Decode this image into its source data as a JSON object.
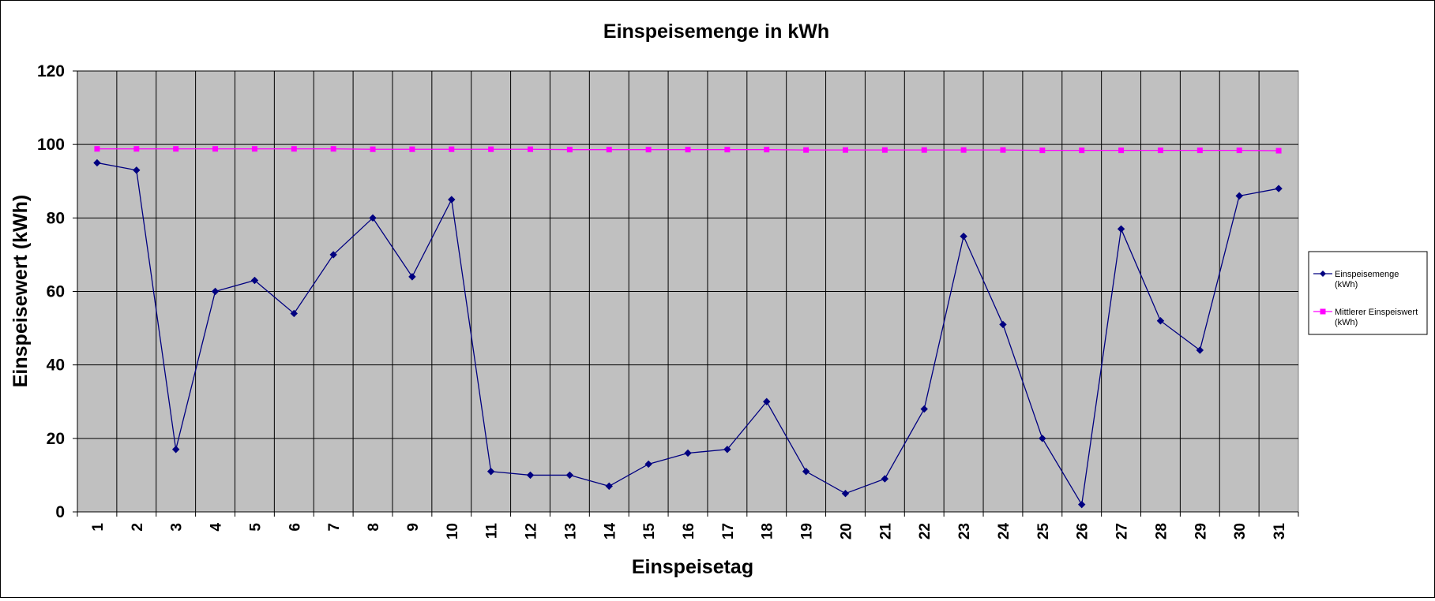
{
  "chart_data": {
    "type": "line",
    "title": "Einspeisemenge in kWh",
    "xlabel": "Einspeisetag",
    "ylabel": "Einspeisewert  (kWh)",
    "ylim": [
      0,
      120
    ],
    "yticks": [
      0,
      20,
      40,
      60,
      80,
      100,
      120
    ],
    "categories": [
      "1",
      "2",
      "3",
      "4",
      "5",
      "6",
      "7",
      "8",
      "9",
      "10",
      "11",
      "12",
      "13",
      "14",
      "15",
      "16",
      "17",
      "18",
      "19",
      "20",
      "21",
      "22",
      "23",
      "24",
      "25",
      "26",
      "27",
      "28",
      "29",
      "30",
      "31"
    ],
    "grid": true,
    "legend_position": "right",
    "series": [
      {
        "name": "Einspeisemenge (kWh)",
        "legend_lines": [
          "Einspeisemenge",
          "(kWh)"
        ],
        "color": "#000080",
        "marker": "diamond",
        "values": [
          95,
          93,
          17,
          60,
          63,
          54,
          70,
          80,
          64,
          85,
          11,
          10,
          10,
          7,
          13,
          16,
          17,
          30,
          11,
          5,
          9,
          28,
          75,
          51,
          20,
          2,
          77,
          52,
          44,
          86,
          88
        ]
      },
      {
        "name": "Mittlerer Einspeiswert (kWh)",
        "legend_lines": [
          "Mittlerer Einspeiswert",
          "(kWh)"
        ],
        "color": "#ff00ff",
        "marker": "square",
        "values": [
          98.8,
          98.8,
          98.8,
          98.8,
          98.8,
          98.8,
          98.8,
          98.7,
          98.7,
          98.7,
          98.7,
          98.7,
          98.6,
          98.6,
          98.6,
          98.6,
          98.6,
          98.6,
          98.5,
          98.5,
          98.5,
          98.5,
          98.5,
          98.5,
          98.4,
          98.4,
          98.4,
          98.4,
          98.4,
          98.4,
          98.3
        ]
      }
    ],
    "plot_background": "#c0c0c0"
  }
}
